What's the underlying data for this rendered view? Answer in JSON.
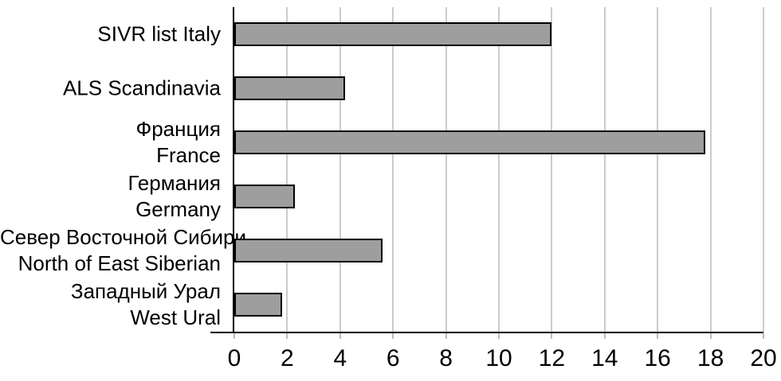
{
  "chart_data": {
    "type": "bar",
    "orientation": "horizontal",
    "title": "",
    "xlabel": "",
    "ylabel": "",
    "categories": [
      [
        "SIVR list Italy"
      ],
      [
        "ALS Scandinavia"
      ],
      [
        "Франция",
        "France"
      ],
      [
        "Германия",
        "Germany"
      ],
      [
        "Север Восточной Сибири",
        "North of East Siberian"
      ],
      [
        "Западный Урал",
        "West Ural"
      ]
    ],
    "values": [
      12.0,
      4.2,
      17.8,
      2.3,
      5.6,
      1.8
    ],
    "xlim": [
      0,
      20
    ],
    "xticks": [
      0,
      2,
      4,
      6,
      8,
      10,
      12,
      14,
      16,
      18,
      20
    ],
    "grid": "vertical-only",
    "legend_position": "none",
    "colors": {
      "bar_fill": "#9E9E9E",
      "bar_border": "#000000",
      "gridline": "#CCCCCC",
      "axis": "#000000",
      "text": "#000000",
      "background": "#FFFFFF"
    }
  }
}
